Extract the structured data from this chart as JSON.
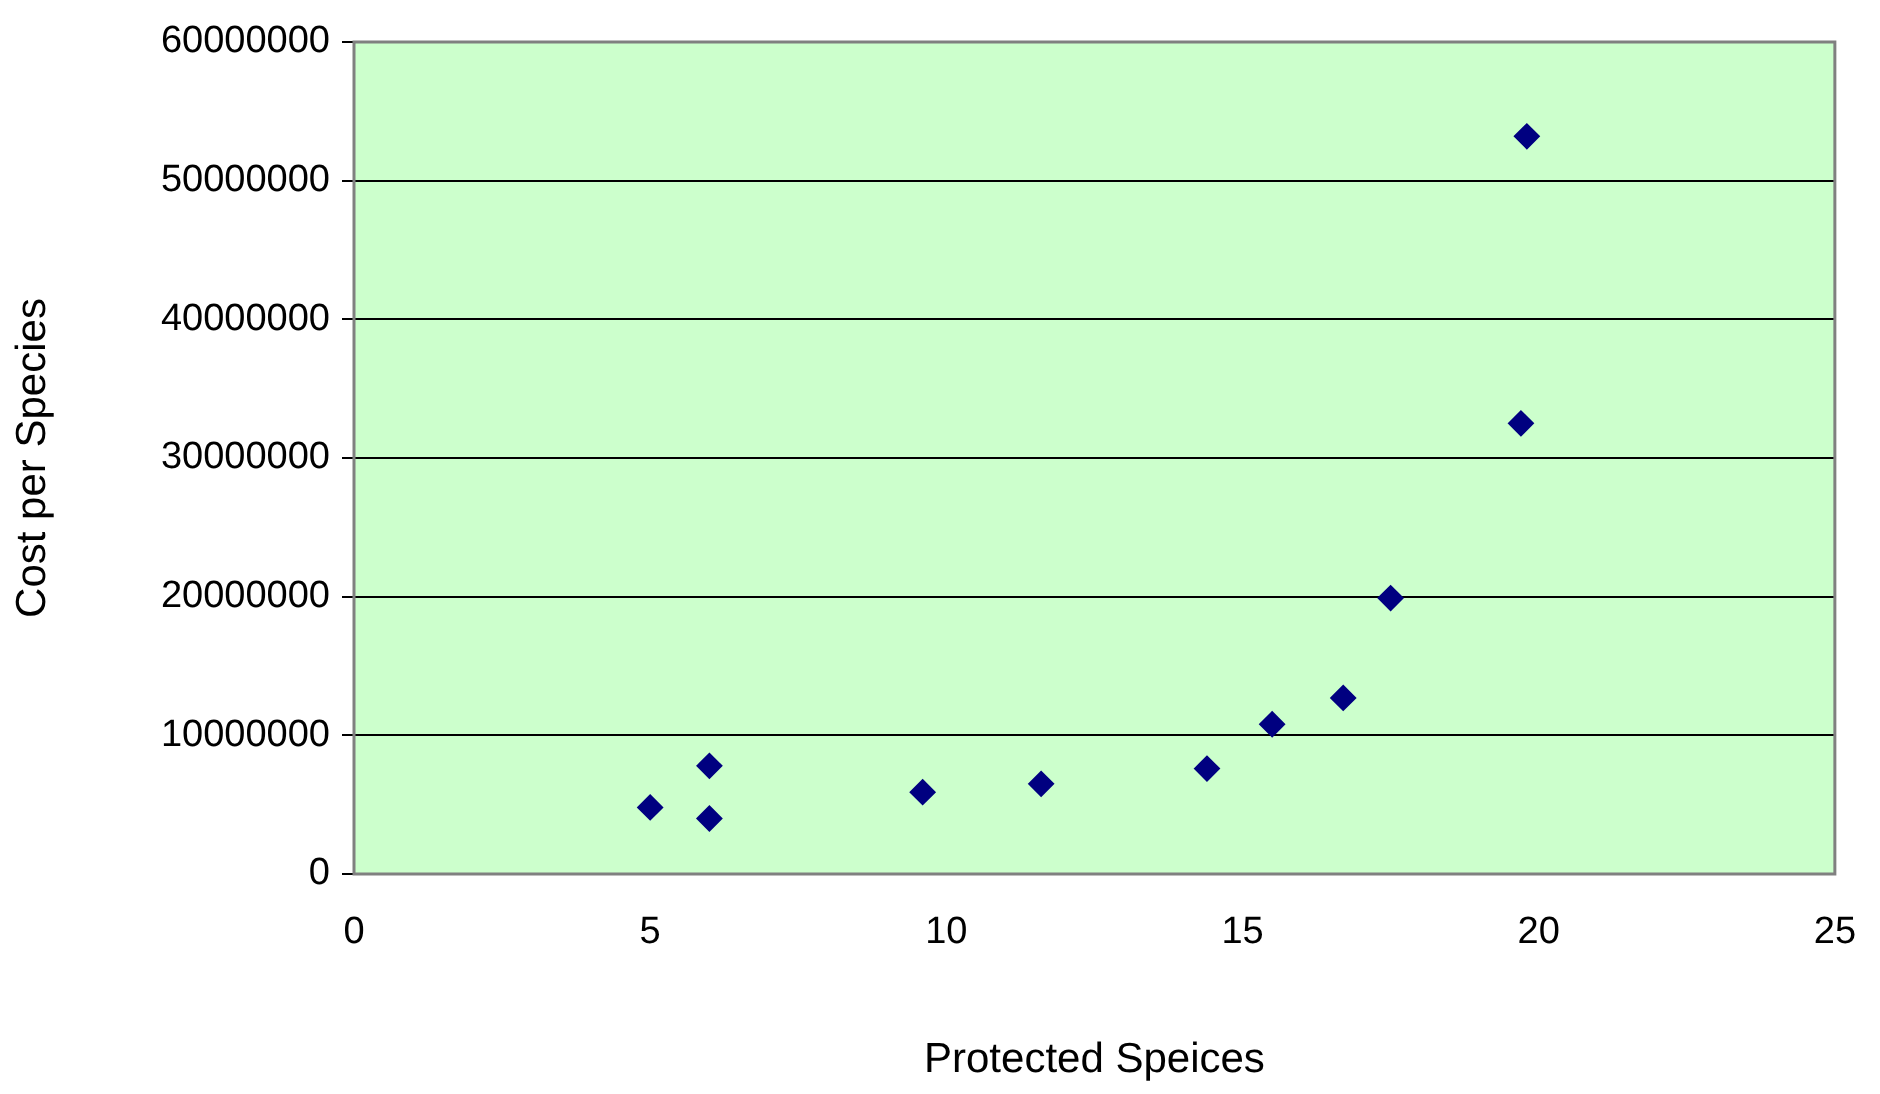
{
  "chart_data": {
    "type": "scatter",
    "xlabel": "Protected Speices",
    "ylabel": "Cost per Species",
    "x": [
      5,
      6,
      6,
      9.6,
      11.6,
      14.4,
      15.5,
      16.7,
      17.5,
      19.7,
      19.8
    ],
    "series": [
      {
        "color": "#000080",
        "values": [
          4800000,
          7800000,
          4000000,
          5900000,
          6500000,
          7600000,
          10800000,
          12700000,
          19900000,
          32500000,
          53200000
        ]
      }
    ],
    "xlim": [
      0,
      25
    ],
    "xticks": [
      0,
      5,
      10,
      15,
      20,
      25
    ],
    "ylim": [
      0,
      60000000
    ],
    "yticks": [
      0,
      10000000,
      20000000,
      30000000,
      40000000,
      50000000,
      60000000
    ],
    "grid": "y",
    "marker": "diamond",
    "legend": false
  }
}
